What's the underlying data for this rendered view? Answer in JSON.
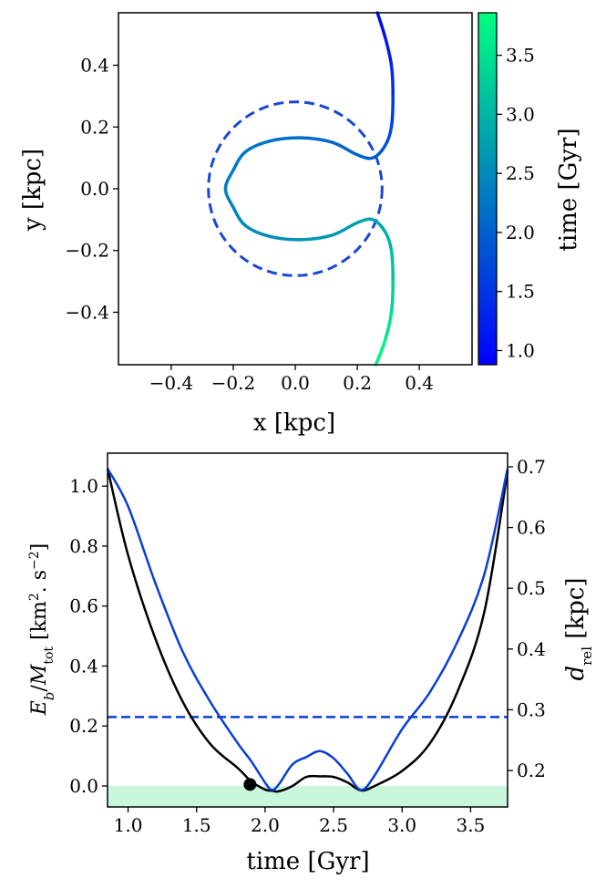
{
  "chart_data": [
    {
      "type": "line",
      "xlabel": "x [kpc]",
      "ylabel": "y [kpc]",
      "colorbar_label": "time [Gyr]",
      "colormap": "winter",
      "xlim": [
        -0.57,
        0.57
      ],
      "ylim": [
        -0.57,
        0.57
      ],
      "xticks": [
        {
          "value": -0.4,
          "label": "−0.4"
        },
        {
          "value": -0.2,
          "label": "−0.2"
        },
        {
          "value": 0,
          "label": "0.0"
        },
        0.2,
        0.4
      ],
      "yticks": [
        {
          "value": -0.4,
          "label": "−0.4"
        },
        {
          "value": -0.2,
          "label": "−0.2"
        },
        {
          "value": 0,
          "label": "0.0"
        },
        0.2,
        0.4
      ],
      "clim": [
        0.88,
        3.86
      ],
      "cticks": [
        {
          "value": 1,
          "label": "1.0"
        },
        1.5,
        {
          "value": 2,
          "label": "2.0"
        },
        2.5,
        {
          "value": 3,
          "label": "3.0"
        },
        3.5
      ],
      "x": [
        0.265,
        0.29,
        0.31,
        0.315,
        0.31,
        0.29,
        0.25,
        0.2,
        0.12,
        0.02,
        -0.08,
        -0.16,
        -0.2,
        -0.225,
        -0.2,
        -0.16,
        -0.08,
        0.02,
        0.12,
        0.2,
        0.25,
        0.29,
        0.31,
        0.315,
        0.31,
        0.29,
        0.26
      ],
      "y": [
        0.57,
        0.49,
        0.4,
        0.3,
        0.2,
        0.14,
        0.1,
        0.11,
        0.15,
        0.165,
        0.155,
        0.12,
        0.06,
        0,
        -0.06,
        -0.12,
        -0.155,
        -0.165,
        -0.15,
        -0.11,
        -0.1,
        -0.14,
        -0.2,
        -0.3,
        -0.4,
        -0.49,
        -0.57
      ],
      "c": [
        0.9,
        1.1,
        1.3,
        1.5,
        1.7,
        1.85,
        1.95,
        2.0,
        2.07,
        2.14,
        2.2,
        2.26,
        2.32,
        2.38,
        2.44,
        2.5,
        2.56,
        2.62,
        2.68,
        2.74,
        2.8,
        2.9,
        3.05,
        3.25,
        3.45,
        3.65,
        3.85
      ],
      "circle_radius": 0.28,
      "circle_color": "#1a47d4"
    },
    {
      "type": "line",
      "xlabel": "time [Gyr]",
      "ylabel": [
        "E",
        "b",
        "/",
        "M",
        "tot",
        " [km",
        "2",
        ". s",
        "−2",
        "]"
      ],
      "y2label": [
        "d",
        "rel",
        " [kpc]"
      ],
      "xlim": [
        0.85,
        3.77
      ],
      "ylim": [
        -0.07,
        1.11
      ],
      "y2lim": [
        0.14,
        0.7225
      ],
      "xticks": [
        {
          "value": 1,
          "label": "1.0"
        },
        1.5,
        {
          "value": 2,
          "label": "2.0"
        },
        2.5,
        {
          "value": 3,
          "label": "3.0"
        },
        3.5
      ],
      "yticks": [
        {
          "value": 0,
          "label": "0.0"
        },
        0.2,
        0.4,
        0.6,
        0.8,
        {
          "value": 1,
          "label": "1.0"
        }
      ],
      "y2ticks": [
        0.2,
        0.3,
        0.4,
        0.5,
        0.6,
        0.7
      ],
      "x": [
        0.85,
        1.0,
        1.2,
        1.4,
        1.6,
        1.8,
        1.9,
        2.0,
        2.05,
        2.1,
        2.2,
        2.3,
        2.4,
        2.5,
        2.6,
        2.7,
        2.8,
        3.0,
        3.2,
        3.4,
        3.6,
        3.77
      ],
      "series": [
        {
          "color": "#000000",
          "values": [
            1.06,
            0.77,
            0.49,
            0.28,
            0.14,
            0.06,
            0.015,
            -0.012,
            -0.016,
            -0.018,
            0.0,
            0.03,
            0.032,
            0.03,
            0.012,
            -0.015,
            0.0,
            0.05,
            0.14,
            0.31,
            0.58,
            1.05
          ]
        },
        {
          "color": "#0a3ed6",
          "axis": "y2",
          "values": [
            0.697,
            0.635,
            0.508,
            0.395,
            0.313,
            0.245,
            0.215,
            0.18,
            0.168,
            0.177,
            0.21,
            0.222,
            0.232,
            0.22,
            0.195,
            0.168,
            0.192,
            0.268,
            0.328,
            0.41,
            0.523,
            0.697
          ]
        }
      ],
      "hline_y2": 0.288,
      "shade_below": 0,
      "shade_color": "#c9f7dc",
      "marker": {
        "x": 1.89,
        "y": 0.005
      }
    }
  ]
}
